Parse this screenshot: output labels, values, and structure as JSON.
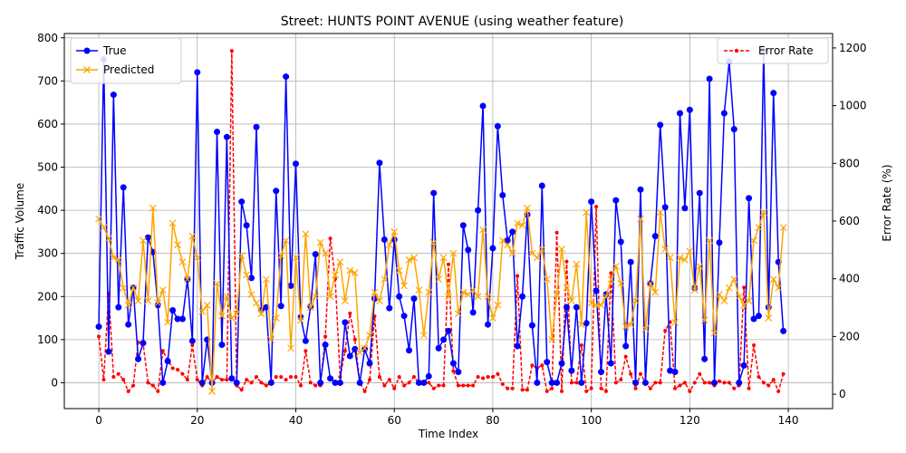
{
  "chart_data": {
    "type": "line",
    "title": "Street: HUNTS POINT AVENUE (using weather feature)",
    "xlabel": "Time Index",
    "ylabel": "Traffic Volume",
    "y2label": "Error Rate (%)",
    "xlim": [
      -7,
      149
    ],
    "ylim": [
      -60,
      810
    ],
    "y2lim": [
      -50,
      1250
    ],
    "xticks": [
      0,
      20,
      40,
      60,
      80,
      100,
      120,
      140
    ],
    "yticks": [
      0,
      100,
      200,
      300,
      400,
      500,
      600,
      700,
      800
    ],
    "y2ticks": [
      0,
      200,
      400,
      600,
      800,
      1000,
      1200
    ],
    "grid": true,
    "legend_left": "top-left",
    "legend_right": "top-right",
    "colors": {
      "true": "#0000ff",
      "predicted": "#ffa500",
      "error": "#ff0000"
    },
    "series": [
      {
        "name": "True",
        "axis": "left",
        "values": [
          130,
          750,
          72,
          668,
          175,
          453,
          135,
          220,
          55,
          92,
          337,
          303,
          180,
          0,
          50,
          168,
          148,
          148,
          240,
          97,
          720,
          0,
          100,
          0,
          582,
          88,
          570,
          10,
          0,
          420,
          365,
          243,
          593,
          168,
          175,
          0,
          445,
          178,
          710,
          225,
          508,
          152,
          97,
          177,
          298,
          0,
          88,
          10,
          0,
          0,
          140,
          62,
          78,
          0,
          78,
          45,
          195,
          510,
          332,
          173,
          332,
          200,
          155,
          75,
          195,
          0,
          0,
          15,
          440,
          80,
          100,
          120,
          45,
          25,
          365,
          308,
          163,
          400,
          642,
          135,
          312,
          595,
          435,
          330,
          350,
          85,
          200,
          390,
          133,
          0,
          457,
          48,
          0,
          0,
          45,
          175,
          28,
          175,
          0,
          138,
          420,
          213,
          25,
          205,
          45,
          423,
          327,
          85,
          280,
          0,
          448,
          0,
          230,
          340,
          598,
          407,
          28,
          25,
          625,
          405,
          633,
          220,
          440,
          55,
          705,
          0,
          325,
          625,
          745,
          588,
          0,
          40,
          428,
          148,
          155,
          770,
          175,
          672,
          280,
          120
        ]
      },
      {
        "name": "Predicted",
        "axis": "left",
        "values": [
          380,
          360,
          335,
          290,
          285,
          220,
          180,
          220,
          190,
          330,
          190,
          405,
          185,
          215,
          140,
          370,
          320,
          280,
          240,
          340,
          290,
          165,
          180,
          -20,
          230,
          155,
          200,
          150,
          160,
          295,
          250,
          205,
          185,
          160,
          240,
          100,
          150,
          295,
          330,
          80,
          290,
          145,
          345,
          175,
          200,
          325,
          300,
          200,
          250,
          280,
          190,
          260,
          255,
          70,
          80,
          110,
          210,
          190,
          240,
          320,
          350,
          260,
          225,
          285,
          290,
          215,
          110,
          210,
          325,
          240,
          290,
          200,
          300,
          160,
          210,
          205,
          215,
          200,
          355,
          200,
          150,
          180,
          330,
          320,
          300,
          370,
          365,
          405,
          300,
          290,
          310,
          240,
          100,
          205,
          310,
          220,
          190,
          275,
          135,
          395,
          185,
          180,
          180,
          200,
          240,
          270,
          230,
          130,
          135,
          190,
          380,
          125,
          230,
          210,
          395,
          310,
          290,
          140,
          290,
          285,
          305,
          215,
          270,
          145,
          330,
          115,
          205,
          190,
          220,
          240,
          200,
          180,
          190,
          330,
          360,
          395,
          150,
          240,
          220,
          360
        ]
      },
      {
        "name": "Error Rate",
        "axis": "right",
        "values": [
          200,
          50,
          350,
          60,
          70,
          50,
          10,
          30,
          180,
          175,
          40,
          30,
          10,
          150,
          120,
          90,
          85,
          70,
          50,
          170,
          50,
          30,
          60,
          40,
          60,
          50,
          50,
          1190,
          30,
          15,
          50,
          40,
          60,
          40,
          30,
          40,
          60,
          60,
          50,
          60,
          60,
          30,
          150,
          40,
          30,
          30,
          200,
          540,
          400,
          60,
          150,
          280,
          190,
          40,
          10,
          50,
          270,
          60,
          30,
          50,
          20,
          60,
          30,
          40,
          60,
          40,
          40,
          40,
          20,
          30,
          30,
          450,
          80,
          30,
          30,
          30,
          30,
          60,
          55,
          60,
          60,
          70,
          35,
          20,
          20,
          410,
          15,
          15,
          100,
          90,
          100,
          10,
          20,
          560,
          10,
          460,
          40,
          40,
          170,
          10,
          20,
          650,
          20,
          10,
          420,
          40,
          50,
          130,
          70,
          20,
          70,
          40,
          20,
          40,
          40,
          220,
          250,
          20,
          30,
          40,
          10,
          40,
          70,
          40,
          40,
          30,
          45,
          40,
          40,
          20,
          30,
          370,
          20,
          170,
          60,
          40,
          30,
          50,
          10,
          70
        ]
      }
    ]
  }
}
